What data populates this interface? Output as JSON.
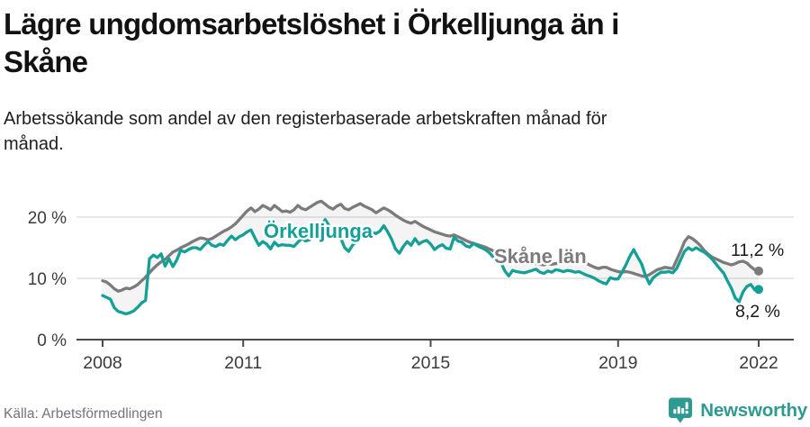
{
  "header": {
    "title_lines": [
      "Lägre ungdomsarbetslöshet i Örkelljunga än i",
      "Skåne"
    ],
    "subtitle_lines": [
      "Arbetssökande som andel av den registerbaserade arbetskraften månad för",
      "månad."
    ]
  },
  "footer": {
    "source": "Källa: Arbetsförmedlingen",
    "brand": "Newsworthy"
  },
  "colors": {
    "accent_teal": "#14a096",
    "series_gray": "#7b7b7b",
    "grid": "#d9d9d9",
    "axis": "#4a4a4a",
    "axis_text": "#3b3b3b",
    "value_label_text": "#191919",
    "brand_teal": "#2f9a92",
    "band_fill": "rgba(0,0,0,0.045)"
  },
  "chart_data": {
    "type": "line",
    "frequency": "monthly",
    "start_year": 2008,
    "end_point": "2022-01",
    "grid": true,
    "ylim": [
      0,
      24
    ],
    "x_ticks": [
      2008,
      2011,
      2015,
      2019,
      2022
    ],
    "y_ticks": [
      {
        "value": 0,
        "label": "0 %"
      },
      {
        "value": 10,
        "label": "10 %"
      },
      {
        "value": 20,
        "label": "20 %"
      }
    ],
    "series": [
      {
        "name": "Örkelljunga",
        "color": "#14a096",
        "end_label": "8,2 %",
        "end_value": 8.2,
        "values": [
          7.2,
          6.9,
          6.6,
          5.2,
          4.6,
          4.4,
          4.2,
          4.4,
          4.7,
          5.3,
          6.0,
          6.4,
          13.2,
          13.8,
          13.4,
          14.0,
          12.0,
          13.2,
          11.9,
          13.0,
          14.6,
          14.3,
          14.7,
          15.0,
          15.0,
          14.7,
          15.4,
          16.0,
          15.4,
          15.2,
          15.6,
          15.4,
          16.2,
          16.9,
          16.3,
          16.8,
          17.1,
          17.6,
          17.9,
          16.6,
          15.4,
          16.0,
          15.6,
          14.8,
          15.9,
          15.3,
          15.5,
          15.4,
          15.4,
          15.2,
          15.9,
          16.5,
          16.1,
          16.3,
          16.8,
          17.5,
          18.5,
          19.6,
          18.6,
          17.9,
          17.2,
          16.5,
          15.0,
          14.4,
          15.4,
          16.1,
          16.9,
          16.5,
          17.1,
          17.5,
          17.3,
          17.7,
          18.6,
          17.6,
          16.4,
          14.8,
          14.1,
          15.2,
          16.0,
          15.4,
          16.5,
          15.6,
          16.0,
          16.2,
          15.6,
          14.7,
          15.2,
          15.5,
          14.9,
          14.8,
          16.7,
          16.1,
          15.9,
          15.3,
          15.1,
          15.7,
          15.3,
          15.0,
          14.7,
          14.2,
          13.5,
          13.1,
          12.6,
          11.2,
          10.4,
          11.3,
          11.1,
          11.0,
          10.9,
          11.1,
          11.3,
          11.5,
          11.0,
          10.8,
          11.2,
          11.0,
          11.4,
          11.3,
          11.1,
          11.3,
          11.2,
          11.0,
          11.1,
          10.8,
          10.5,
          10.3,
          10.0,
          9.6,
          9.3,
          9.1,
          10.1,
          9.9,
          9.9,
          11.0,
          12.2,
          13.6,
          14.7,
          13.5,
          12.4,
          10.5,
          9.1,
          10.1,
          10.6,
          11.0,
          11.0,
          11.1,
          10.9,
          11.6,
          13.0,
          14.4,
          15.0,
          14.6,
          15.0,
          14.6,
          14.3,
          13.8,
          13.2,
          12.4,
          11.6,
          10.9,
          9.6,
          8.4,
          6.8,
          6.2,
          7.8,
          8.7,
          9.0,
          8.1,
          8.2
        ]
      },
      {
        "name": "Skåne län",
        "color": "#7b7b7b",
        "end_label": "11,2 %",
        "end_value": 11.2,
        "values": [
          9.6,
          9.4,
          8.9,
          8.3,
          7.9,
          8.1,
          8.4,
          8.3,
          8.6,
          9.0,
          9.6,
          10.2,
          10.9,
          11.6,
          12.2,
          12.7,
          13.1,
          13.7,
          14.3,
          14.6,
          15.0,
          15.3,
          15.6,
          16.0,
          16.3,
          16.6,
          16.5,
          16.3,
          16.5,
          16.9,
          17.3,
          17.7,
          18.0,
          18.4,
          18.9,
          19.6,
          20.3,
          21.0,
          21.5,
          20.9,
          21.3,
          21.9,
          21.6,
          21.2,
          21.9,
          21.4,
          20.9,
          21.0,
          20.8,
          21.2,
          21.9,
          21.4,
          21.2,
          21.6,
          22.0,
          22.4,
          22.6,
          22.1,
          21.6,
          21.3,
          21.8,
          22.1,
          21.4,
          21.2,
          21.6,
          21.9,
          22.2,
          21.8,
          21.5,
          21.2,
          20.7,
          21.1,
          21.5,
          21.2,
          20.8,
          20.3,
          19.9,
          19.5,
          19.2,
          19.0,
          19.3,
          18.9,
          18.5,
          18.2,
          17.9,
          17.6,
          17.4,
          17.2,
          17.0,
          16.9,
          17.1,
          16.8,
          16.5,
          16.2,
          15.9,
          15.7,
          15.5,
          15.3,
          15.1,
          14.8,
          14.5,
          14.1,
          13.8,
          13.5,
          13.3,
          13.1,
          13.0,
          12.9,
          12.8,
          12.6,
          12.5,
          12.4,
          12.3,
          12.2,
          12.4,
          12.3,
          12.4,
          12.6,
          12.7,
          12.8,
          12.7,
          12.5,
          12.6,
          12.7,
          12.4,
          12.1,
          11.8,
          11.6,
          11.8,
          11.8,
          11.5,
          11.3,
          11.1,
          11.0,
          11.1,
          11.0,
          10.8,
          10.6,
          10.4,
          10.3,
          10.6,
          11.0,
          11.4,
          11.6,
          11.8,
          11.7,
          11.6,
          13.0,
          14.4,
          16.0,
          16.8,
          16.5,
          16.0,
          15.4,
          14.6,
          14.0,
          13.5,
          13.2,
          12.9,
          12.6,
          12.4,
          12.2,
          12.4,
          12.7,
          12.8,
          12.5,
          11.9,
          11.4,
          11.2
        ]
      }
    ]
  }
}
